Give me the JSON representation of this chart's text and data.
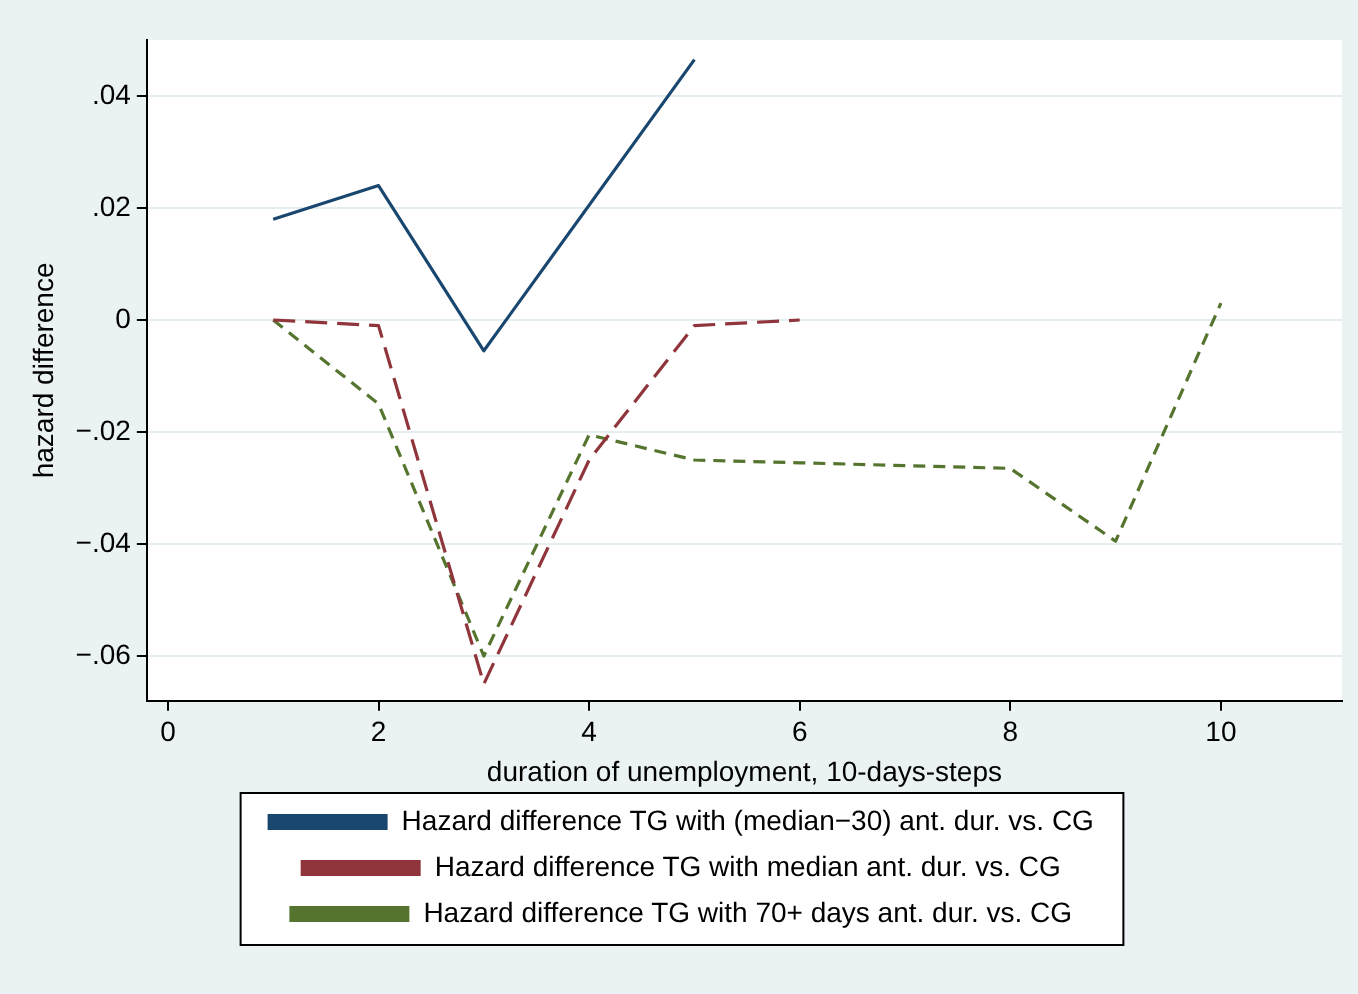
{
  "chart_data": {
    "type": "line",
    "xlabel": "duration of unemployment, 10-days-steps",
    "ylabel": "hazard difference",
    "xlim": [
      -0.2,
      11.15
    ],
    "xticks": [
      0,
      2,
      4,
      6,
      8,
      10
    ],
    "ylim": [
      -0.068,
      0.05
    ],
    "yticks": [
      {
        "value": -0.06,
        "label": "−.06"
      },
      {
        "value": -0.04,
        "label": "−.04"
      },
      {
        "value": -0.02,
        "label": "−.02"
      },
      0,
      {
        "value": 0.02,
        "label": ".02"
      },
      {
        "value": 0.04,
        "label": ".04"
      }
    ],
    "grid": "y",
    "legend": "bottom",
    "marker": "none",
    "series": [
      {
        "name": "Hazard difference TG with (median−30) ant. dur. vs. CG",
        "color": "#1a476f",
        "line_style": "solid",
        "x": [
          1,
          2,
          3,
          5
        ],
        "values": [
          0.018,
          0.024,
          -0.0055,
          0.0465
        ]
      },
      {
        "name": "Hazard difference TG with median ant. dur. vs. CG",
        "color": "#90353b",
        "line_style": "dashed",
        "x": [
          1,
          2,
          3,
          4,
          5,
          6
        ],
        "values": [
          0,
          -0.001,
          -0.065,
          -0.025,
          -0.001,
          0
        ]
      },
      {
        "name": "Hazard difference TG with 70+ days ant. dur. vs. CG",
        "color": "#55752f",
        "line_style": "dotted",
        "x": [
          1,
          2,
          3,
          4,
          5,
          6,
          8,
          9,
          10
        ],
        "values": [
          0,
          -0.015,
          -0.06,
          -0.0205,
          -0.025,
          -0.0255,
          -0.0265,
          -0.0395,
          0.003
        ]
      }
    ]
  }
}
